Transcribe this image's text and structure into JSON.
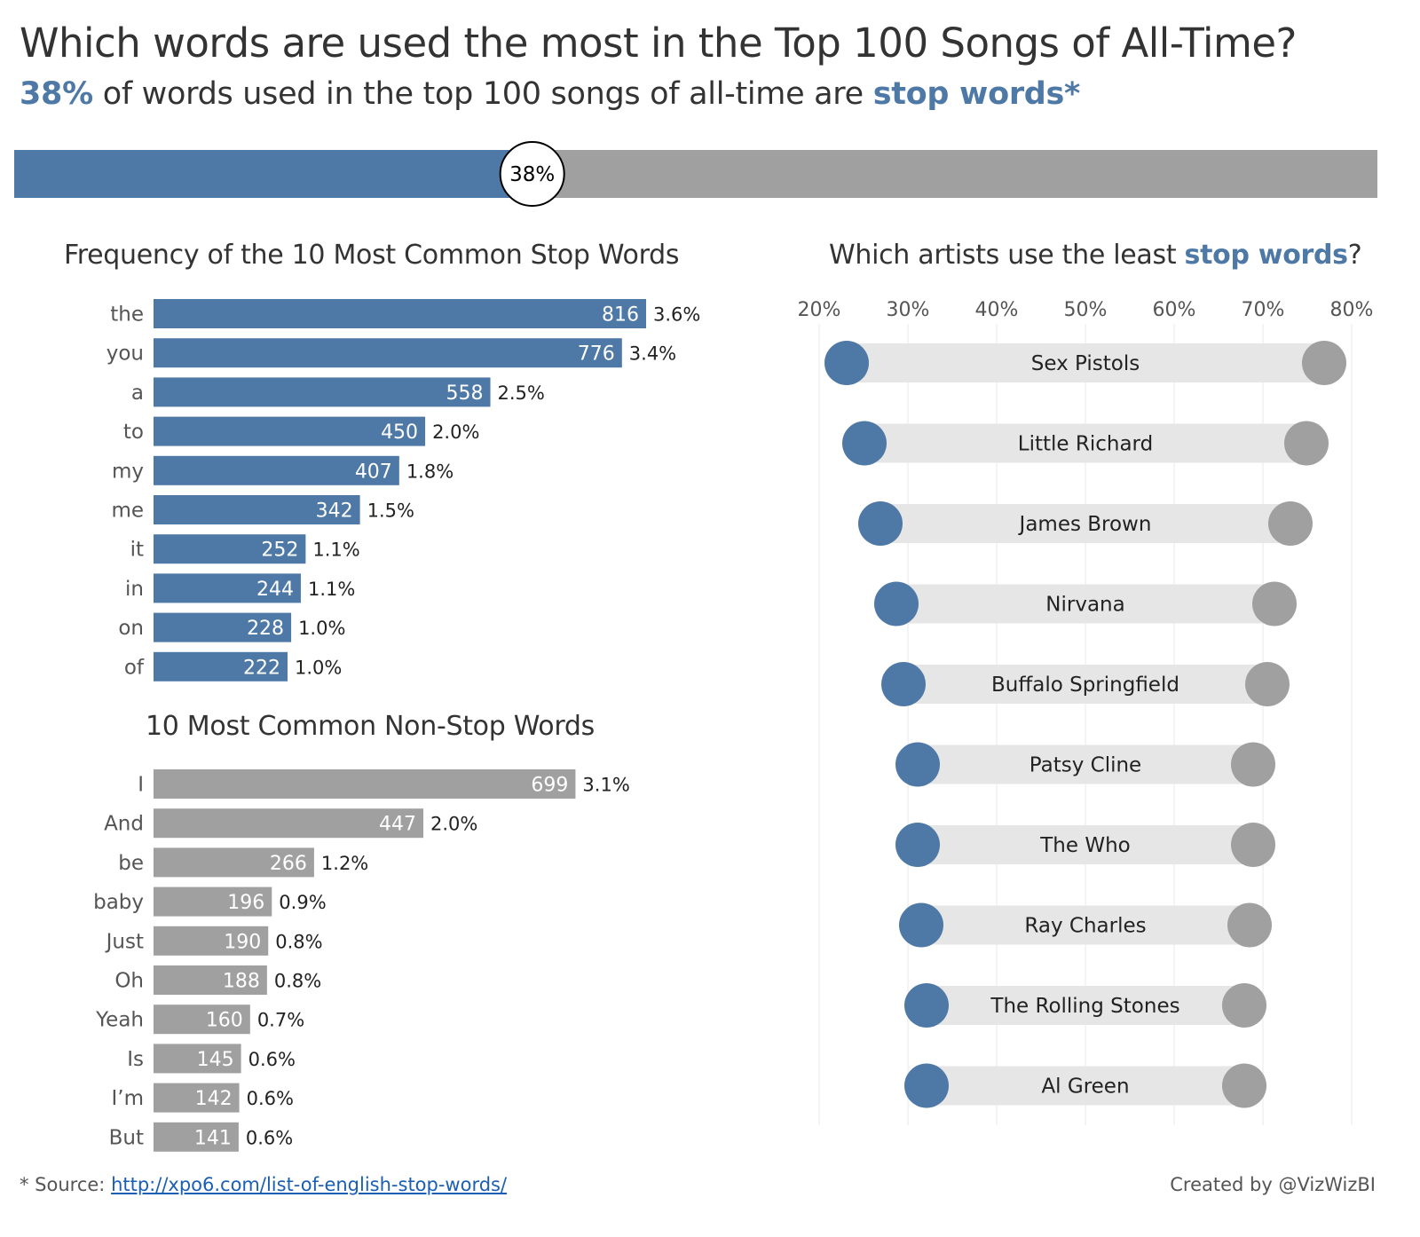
{
  "header": {
    "title": "Which words are used the most in the Top 100 Songs of All-Time?",
    "subtitle_pct": "38%",
    "subtitle_mid": " of words used in the top 100 songs of all-time are ",
    "subtitle_link": "stop words*"
  },
  "colors": {
    "blue": "#4e79a7",
    "gray": "#a0a0a0",
    "track": "#e6e6e6",
    "grid": "#e8e8e8"
  },
  "chart_data": [
    {
      "type": "bar",
      "title": "38%",
      "values": [
        38
      ],
      "labels": [
        "38%"
      ],
      "max": 100
    },
    {
      "type": "bar",
      "title": "Frequency of the 10 Most Common Stop Words",
      "categories": [
        "the",
        "you",
        "a",
        "to",
        "my",
        "me",
        "it",
        "in",
        "on",
        "of"
      ],
      "values": [
        816,
        776,
        558,
        450,
        407,
        342,
        252,
        244,
        228,
        222
      ],
      "percent_labels": [
        "3.6%",
        "3.4%",
        "2.5%",
        "2.0%",
        "1.8%",
        "1.5%",
        "1.1%",
        "1.1%",
        "1.0%",
        "1.0%"
      ],
      "color": "#4e79a7"
    },
    {
      "type": "bar",
      "title": "10 Most Common Non-Stop Words",
      "categories": [
        "I",
        "And",
        "be",
        "baby",
        "Just",
        "Oh",
        "Yeah",
        "Is",
        "I’m",
        "But"
      ],
      "values": [
        699,
        447,
        266,
        196,
        190,
        188,
        160,
        145,
        142,
        141
      ],
      "percent_labels": [
        "3.1%",
        "2.0%",
        "1.2%",
        "0.9%",
        "0.8%",
        "0.8%",
        "0.7%",
        "0.6%",
        "0.6%",
        "0.6%"
      ],
      "color": "#a0a0a0"
    },
    {
      "type": "scatter",
      "title_pre": "Which artists use the least ",
      "title_accent": "stop words",
      "title_post": "?",
      "xlim": [
        20,
        80
      ],
      "xticks": [
        20,
        30,
        40,
        50,
        60,
        70,
        80
      ],
      "xtick_labels": [
        "20%",
        "30%",
        "40%",
        "50%",
        "60%",
        "70%",
        "80%"
      ],
      "artists": [
        "Sex Pistols",
        "Little Richard",
        "James Brown",
        "Nirvana",
        "Buffalo Springfield",
        "Patsy Cline",
        "The Who",
        "Ray Charles",
        "The Rolling Stones",
        "Al Green"
      ],
      "stop_pct": [
        23.1,
        25.1,
        26.9,
        28.7,
        29.5,
        31.1,
        31.1,
        31.5,
        32.1,
        32.1
      ],
      "non_stop_pct": [
        76.9,
        74.9,
        73.1,
        71.3,
        70.5,
        68.9,
        68.9,
        68.5,
        67.9,
        67.9
      ]
    }
  ],
  "footer": {
    "source_label": "* Source: ",
    "source_url": "http://xpo6.com/list-of-english-stop-words/",
    "credit": "Created by @VizWizBI"
  }
}
